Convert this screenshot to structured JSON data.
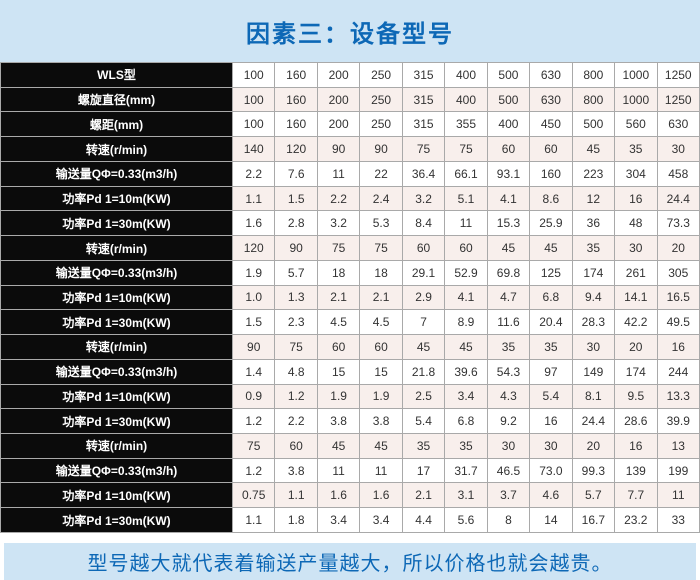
{
  "header": {
    "title": "因素三：设备型号"
  },
  "colors": {
    "band_background": "#cee4f4",
    "accent_blue_text": "#0d68b6",
    "label_cell_background": "#0b0b0b",
    "label_cell_text": "#ffffff",
    "alt_row_background": "#f8efec",
    "grid_border": "#a9a9a9"
  },
  "table": {
    "rows": [
      {
        "label": "WLS型",
        "values": [
          "100",
          "160",
          "200",
          "250",
          "315",
          "400",
          "500",
          "630",
          "800",
          "1000",
          "1250"
        ]
      },
      {
        "label": "螺旋直径(mm)",
        "values": [
          "100",
          "160",
          "200",
          "250",
          "315",
          "400",
          "500",
          "630",
          "800",
          "1000",
          "1250"
        ]
      },
      {
        "label": "螺距(mm)",
        "values": [
          "100",
          "160",
          "200",
          "250",
          "315",
          "355",
          "400",
          "450",
          "500",
          "560",
          "630"
        ]
      },
      {
        "label": "转速(r/min)",
        "values": [
          "140",
          "120",
          "90",
          "90",
          "75",
          "75",
          "60",
          "60",
          "45",
          "35",
          "30"
        ]
      },
      {
        "label": "输送量QΦ=0.33(m3/h)",
        "values": [
          "2.2",
          "7.6",
          "11",
          "22",
          "36.4",
          "66.1",
          "93.1",
          "160",
          "223",
          "304",
          "458"
        ]
      },
      {
        "label": "功率Pd 1=10m(KW)",
        "values": [
          "1.1",
          "1.5",
          "2.2",
          "2.4",
          "3.2",
          "5.1",
          "4.1",
          "8.6",
          "12",
          "16",
          "24.4"
        ]
      },
      {
        "label": "功率Pd 1=30m(KW)",
        "values": [
          "1.6",
          "2.8",
          "3.2",
          "5.3",
          "8.4",
          "11",
          "15.3",
          "25.9",
          "36",
          "48",
          "73.3"
        ]
      },
      {
        "label": "转速(r/min)",
        "values": [
          "120",
          "90",
          "75",
          "75",
          "60",
          "60",
          "45",
          "45",
          "35",
          "30",
          "20"
        ]
      },
      {
        "label": "输送量QΦ=0.33(m3/h)",
        "values": [
          "1.9",
          "5.7",
          "18",
          "18",
          "29.1",
          "52.9",
          "69.8",
          "125",
          "174",
          "261",
          "305"
        ]
      },
      {
        "label": "功率Pd 1=10m(KW)",
        "values": [
          "1.0",
          "1.3",
          "2.1",
          "2.1",
          "2.9",
          "4.1",
          "4.7",
          "6.8",
          "9.4",
          "14.1",
          "16.5"
        ]
      },
      {
        "label": "功率Pd 1=30m(KW)",
        "values": [
          "1.5",
          "2.3",
          "4.5",
          "4.5",
          "7",
          "8.9",
          "11.6",
          "20.4",
          "28.3",
          "42.2",
          "49.5"
        ]
      },
      {
        "label": "转速(r/min)",
        "values": [
          "90",
          "75",
          "60",
          "60",
          "45",
          "45",
          "35",
          "35",
          "30",
          "20",
          "16"
        ]
      },
      {
        "label": "输送量QΦ=0.33(m3/h)",
        "values": [
          "1.4",
          "4.8",
          "15",
          "15",
          "21.8",
          "39.6",
          "54.3",
          "97",
          "149",
          "174",
          "244"
        ]
      },
      {
        "label": "功率Pd 1=10m(KW)",
        "values": [
          "0.9",
          "1.2",
          "1.9",
          "1.9",
          "2.5",
          "3.4",
          "4.3",
          "5.4",
          "8.1",
          "9.5",
          "13.3"
        ]
      },
      {
        "label": "功率Pd 1=30m(KW)",
        "values": [
          "1.2",
          "2.2",
          "3.8",
          "3.8",
          "5.4",
          "6.8",
          "9.2",
          "16",
          "24.4",
          "28.6",
          "39.9"
        ]
      },
      {
        "label": "转速(r/min)",
        "values": [
          "75",
          "60",
          "45",
          "45",
          "35",
          "35",
          "30",
          "30",
          "20",
          "16",
          "13"
        ]
      },
      {
        "label": "输送量QΦ=0.33(m3/h)",
        "values": [
          "1.2",
          "3.8",
          "11",
          "11",
          "17",
          "31.7",
          "46.5",
          "73.0",
          "99.3",
          "139",
          "199"
        ]
      },
      {
        "label": "功率Pd 1=10m(KW)",
        "values": [
          "0.75",
          "1.1",
          "1.6",
          "1.6",
          "2.1",
          "3.1",
          "3.7",
          "4.6",
          "5.7",
          "7.7",
          "11"
        ]
      },
      {
        "label": "功率Pd 1=30m(KW)",
        "values": [
          "1.1",
          "1.8",
          "3.4",
          "3.4",
          "4.4",
          "5.6",
          "8",
          "14",
          "16.7",
          "23.2",
          "33"
        ]
      }
    ]
  },
  "footer": {
    "text": "型号越大就代表着输送产量越大，所以价格也就会越贵。"
  }
}
